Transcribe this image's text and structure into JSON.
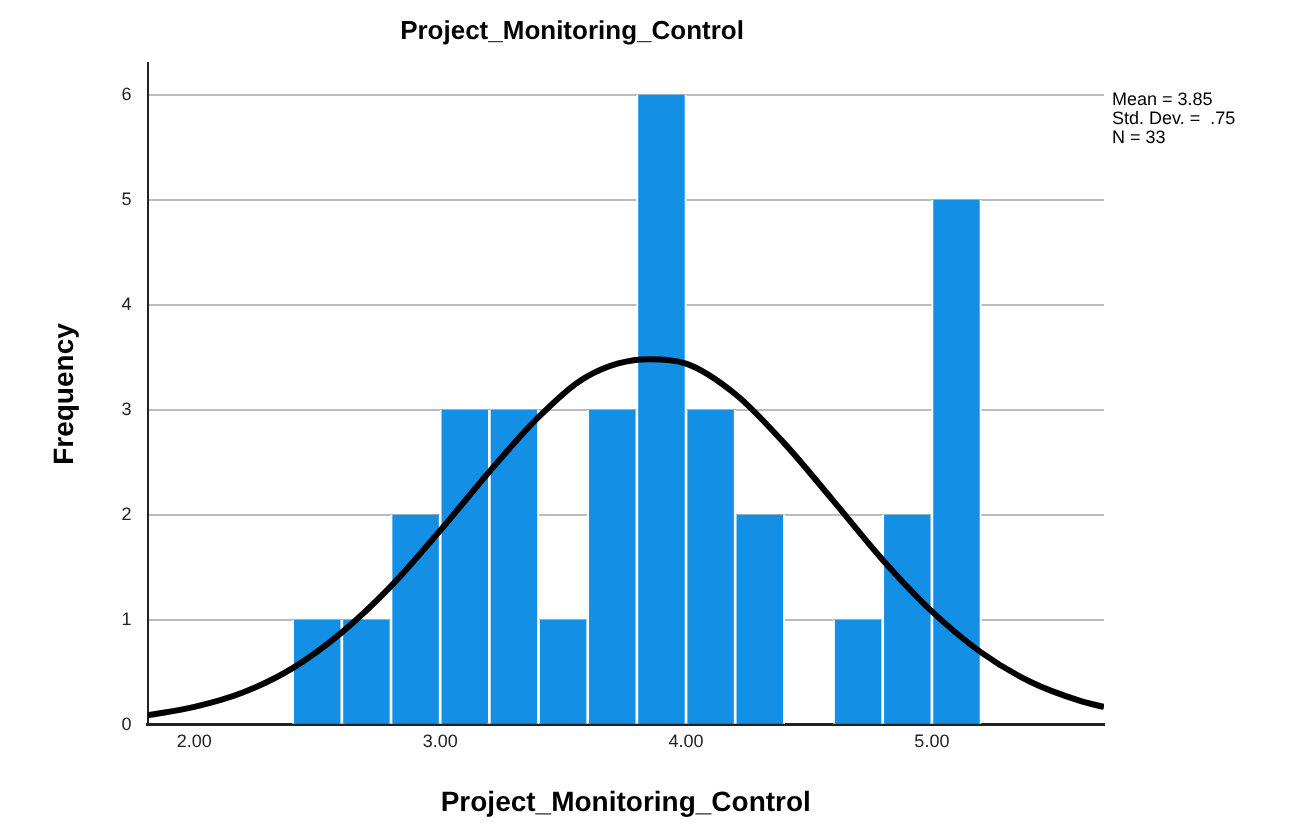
{
  "chart_data": {
    "type": "histogram",
    "title": "Project_Monitoring_Control",
    "xlabel": "Project_Monitoring_Control",
    "ylabel": "Frequency",
    "bins": [
      2.4,
      2.6,
      2.8,
      3.0,
      3.2,
      3.4,
      3.6,
      3.8,
      4.0,
      4.2,
      4.4,
      4.6,
      4.8,
      5.0,
      5.2
    ],
    "values": [
      1,
      1,
      2,
      3,
      3,
      1,
      3,
      6,
      3,
      2,
      0,
      1,
      2,
      5
    ],
    "color": "#1390e6",
    "series": [
      {
        "type": "line",
        "color": "#000000",
        "x": [
          1.81,
          2.0,
          2.2,
          2.4,
          2.6,
          2.8,
          3.0,
          3.2,
          3.4,
          3.6,
          3.85,
          4.0,
          4.2,
          4.4,
          4.6,
          4.8,
          5.0,
          5.2,
          5.4,
          5.6,
          5.7
        ],
        "values": [
          0.09,
          0.17,
          0.31,
          0.54,
          0.88,
          1.32,
          1.85,
          2.41,
          2.93,
          3.32,
          3.48,
          3.44,
          3.15,
          2.68,
          2.13,
          1.57,
          1.08,
          0.69,
          0.41,
          0.23,
          0.17
        ]
      }
    ],
    "xlim": [
      1.81,
      5.7
    ],
    "xticks": [
      {
        "value": 2,
        "label": "2.00"
      },
      {
        "value": 3,
        "label": "3.00"
      },
      {
        "value": 4,
        "label": "4.00"
      },
      {
        "value": 5,
        "label": "5.00"
      }
    ],
    "ylim": [
      0,
      6.3
    ],
    "yticks": [
      0,
      1,
      2,
      3,
      4,
      5,
      6
    ],
    "grid": "y",
    "marker": "none",
    "line_style": "solid",
    "annotations": [
      "Mean = 3.85",
      "Std. Dev. =  .75",
      "N = 33"
    ]
  }
}
